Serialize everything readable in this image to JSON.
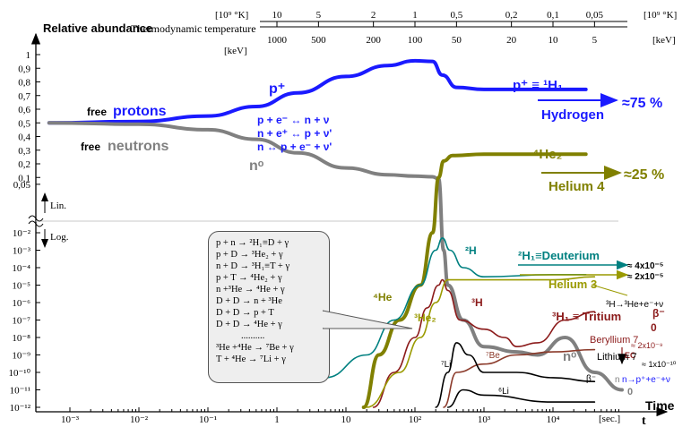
{
  "chart_data": {
    "type": "line",
    "ylabel": "Relative abundance",
    "xlabel": "t",
    "x_axis_title": "Time",
    "x_unit_label": "[sec.]",
    "top_axis_title": "Thermodynamic temperature",
    "top_temp_unit": "[10⁹ °K]",
    "top_energy_unit": "[keV]",
    "x_ticks": [
      "10⁻³",
      "10⁻²",
      "10⁻¹",
      "1",
      "10",
      "10²",
      "10³",
      "10⁴"
    ],
    "top_temp_ticks": [
      "10",
      "5",
      "2",
      "1",
      "0,5",
      "0,2",
      "0,1",
      "0,05"
    ],
    "top_energy_ticks": [
      "1000",
      "500",
      "200",
      "100",
      "50",
      "20",
      "10",
      "5"
    ],
    "y_linear_ticks": [
      "1",
      "0,9",
      "0,8",
      "0,7",
      "0,6",
      "0,5",
      "0,4",
      "0,3",
      "0,2",
      "0,1",
      "0,05"
    ],
    "y_log_ticks": [
      "10⁻²",
      "10⁻³",
      "10⁻⁴",
      "10⁻⁵",
      "10⁻⁶",
      "10⁻⁷",
      "10⁻⁸",
      "10⁻⁹",
      "10⁻¹⁰",
      "10⁻¹¹",
      "10⁻¹²"
    ],
    "scale_labels": {
      "linear": "Lin.",
      "log": "Log."
    },
    "series": [
      {
        "name": "free protons",
        "color": "#1a1aff",
        "points": [
          [
            0.0005,
            0.5
          ],
          [
            0.01,
            0.51
          ],
          [
            0.1,
            0.55
          ],
          [
            0.5,
            0.62
          ],
          [
            2,
            0.72
          ],
          [
            10,
            0.84
          ],
          [
            40,
            0.92
          ],
          [
            100,
            0.955
          ],
          [
            180,
            0.95
          ],
          [
            250,
            0.85
          ],
          [
            400,
            0.76
          ],
          [
            1000,
            0.745
          ],
          [
            5000,
            0.745
          ],
          [
            30000,
            0.745
          ]
        ]
      },
      {
        "name": "free neutrons",
        "color": "#808080",
        "points": [
          [
            0.0005,
            0.5
          ],
          [
            0.01,
            0.49
          ],
          [
            0.1,
            0.45
          ],
          [
            0.5,
            0.38
          ],
          [
            2,
            0.28
          ],
          [
            10,
            0.17
          ],
          [
            40,
            0.12
          ],
          [
            100,
            0.11
          ],
          [
            180,
            0.105
          ],
          [
            220,
            0.09
          ],
          [
            260,
            0.001
          ],
          [
            300,
            1e-05
          ],
          [
            500,
            1e-07
          ],
          [
            1000,
            3e-09
          ],
          [
            3000,
            1.5e-09
          ],
          [
            6000,
            1e-09
          ],
          [
            15000,
            1e-08
          ],
          [
            40000,
            1e-10
          ],
          [
            100000,
            1e-11
          ]
        ]
      },
      {
        "name": "⁴He",
        "color": "#808000",
        "points": [
          [
            18,
            1e-12
          ],
          [
            30,
            1e-09
          ],
          [
            60,
            1e-07
          ],
          [
            120,
            1e-05
          ],
          [
            180,
            0.01
          ],
          [
            220,
            0.1
          ],
          [
            260,
            0.22
          ],
          [
            350,
            0.26
          ],
          [
            1000,
            0.27
          ],
          [
            30000,
            0.27
          ]
        ]
      },
      {
        "name": "²H",
        "color": "#008080",
        "points": [
          [
            5,
            5e-11
          ],
          [
            20,
            1e-09
          ],
          [
            50,
            1e-07
          ],
          [
            120,
            1e-05
          ],
          [
            200,
            0.001
          ],
          [
            250,
            0.005
          ],
          [
            320,
            0.001
          ],
          [
            500,
            0.0001
          ],
          [
            1000,
            3e-05
          ],
          [
            10000,
            4e-05
          ],
          [
            30000,
            4e-05
          ]
        ]
      },
      {
        "name": "³H",
        "color": "#8b1a1a",
        "points": [
          [
            25,
            1e-12
          ],
          [
            50,
            1e-10
          ],
          [
            100,
            1e-08
          ],
          [
            150,
            5e-07
          ],
          [
            220,
            1e-05
          ],
          [
            250,
            2e-05
          ],
          [
            300,
            5e-06
          ],
          [
            450,
            1e-07
          ],
          [
            1000,
            3e-08
          ],
          [
            2000,
            1e-08
          ],
          [
            3000,
            3e-09
          ],
          [
            6000,
            5e-09
          ],
          [
            15000,
            1e-07
          ],
          [
            40000,
            3e-07
          ]
        ]
      },
      {
        "name": "³He",
        "color": "#9a9a00",
        "points": [
          [
            20,
            1e-12
          ],
          [
            60,
            1e-10
          ],
          [
            120,
            1e-08
          ],
          [
            200,
            1e-06
          ],
          [
            300,
            2e-05
          ],
          [
            1000,
            2e-05
          ],
          [
            10000,
            2e-05
          ],
          [
            40000,
            3e-05
          ]
        ]
      },
      {
        "name": "⁷Be",
        "color": "#8b3a2a",
        "points": [
          [
            260,
            1e-12
          ],
          [
            400,
            1e-10
          ],
          [
            1000,
            3e-10
          ],
          [
            3000,
            1e-09
          ],
          [
            10000,
            1.5e-09
          ],
          [
            40000,
            2e-09
          ]
        ]
      },
      {
        "name": "⁷Li",
        "color": "#000000",
        "points": [
          [
            200,
            1e-12
          ],
          [
            300,
            1e-10
          ],
          [
            400,
            5e-09
          ],
          [
            600,
            1e-09
          ],
          [
            1000,
            1e-10
          ],
          [
            3000,
            1e-10
          ],
          [
            10000,
            5e-11
          ],
          [
            40000,
            3e-11
          ]
        ]
      },
      {
        "name": "⁶Li",
        "color": "#000000",
        "points": [
          [
            300,
            1e-12
          ],
          [
            500,
            1e-11
          ],
          [
            1000,
            5e-12
          ],
          [
            10000,
            2e-12
          ],
          [
            40000,
            2e-12
          ]
        ]
      }
    ],
    "labels": {
      "free_protons_small": "free",
      "free_protons_big": "protons",
      "free_neutrons_small": "free",
      "free_neutrons_big": "neutrons",
      "p_plus": "p⁺",
      "n_zero": "nᵒ",
      "p_hydrogen_eq": "p⁺ ≡ ¹H₁",
      "hydrogen": "Hydrogen",
      "hydrogen_pct": "≈75 %",
      "he4_top": "⁴He₂",
      "helium4": "Helium 4",
      "helium4_pct": "≈25 %",
      "deuterium": "²H₁≡Deuterium",
      "deuterium_val": "≈ 4x10⁻⁵",
      "helium3": "Helium 3",
      "helium3_val": "≈ 2x10⁻⁵",
      "tritium": "³H₁ ≡ Tritium",
      "tritium_decay": "³H→³He+e⁻+ν",
      "beta_minus": "β⁻",
      "zero": "0",
      "beryllium7": "Beryllium 7",
      "be7_val": "≈ 2x10⁻⁹",
      "ec": "EC",
      "lithium7": "Lithium 7",
      "li7_val": "≈ 1x10⁻¹⁰",
      "neutron_decay": "n→p⁺+e⁻+ν",
      "beta_minus2": "β⁻",
      "zero2": "0",
      "he4_mid": "⁴He",
      "h2": "²H",
      "he3_mid": "³He₂",
      "h3": "³H",
      "be7": "⁷Be",
      "li7": "⁷Li",
      "li6": "⁶Li",
      "n0_low": "nᵒ",
      "n0_small": "n",
      "dots": "..........."
    },
    "weak_reactions": [
      "p + e⁻ ↔ n + ν",
      "n + e⁺ ↔ p + ν'",
      "n ↔ p + e⁻ + ν'"
    ],
    "nuclear_reactions": [
      "p + n → ²H₁≡D + γ",
      "p + D → ³He₂ + γ",
      "n + D → ³H₁≡T + γ",
      "p + T → ⁴He₂ + γ",
      "n +³He → ⁴He + γ",
      "D + D → n + ³He",
      "D + D → p + T",
      "D + D → ⁴He + γ",
      "..........",
      "³He +⁴He → ⁷Be + γ",
      "T + ⁴He → ⁷Li + γ"
    ]
  }
}
